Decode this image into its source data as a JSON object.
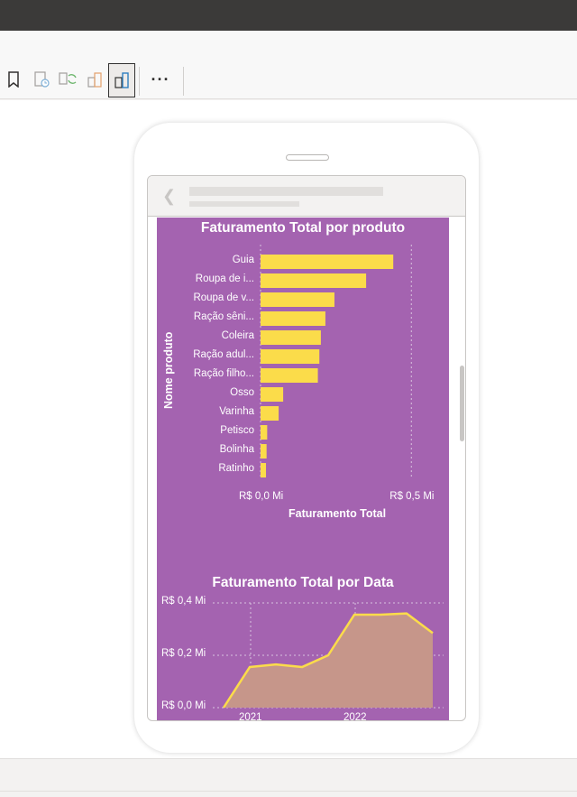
{
  "ribbon": {
    "buttons": [
      {
        "name": "bookmark-icon"
      },
      {
        "name": "performance-analyzer-icon"
      },
      {
        "name": "sync-slicers-icon"
      },
      {
        "name": "desktop-layout-icon"
      },
      {
        "name": "mobile-layout-icon"
      },
      {
        "name": "more-options-icon",
        "label": "···"
      }
    ]
  },
  "colors": {
    "report_bg": "#a463b0",
    "bar_color": "#fbdc4a",
    "area_fill": "#c6968a",
    "line_color": "#fbdc4a"
  },
  "charts": {
    "bar_title": "Faturamento Total por produto",
    "bar_ylabel": "Nome produto",
    "bar_xlabel": "Faturamento Total",
    "line_title": "Faturamento Total por Data"
  },
  "chart_data": [
    {
      "type": "bar",
      "orientation": "horizontal",
      "title": "Faturamento Total por produto",
      "xlabel": "Faturamento Total",
      "ylabel": "Nome produto",
      "categories": [
        "Guia",
        "Roupa de i...",
        "Roupa de v...",
        "Ração sêni...",
        "Coleira",
        "Ração adul...",
        "Ração filho...",
        "Osso",
        "Varinha",
        "Petisco",
        "Bolinha",
        "Ratinho"
      ],
      "values": [
        0.44,
        0.35,
        0.245,
        0.215,
        0.2,
        0.195,
        0.19,
        0.075,
        0.06,
        0.022,
        0.02,
        0.018
      ],
      "xticks": [
        "R$ 0,0 Mi",
        "R$ 0,5 Mi"
      ],
      "xlim": [
        0,
        0.55
      ],
      "unit": "Mi"
    },
    {
      "type": "area",
      "title": "Faturamento Total por Data",
      "x": [
        "2020-10",
        "2021-01",
        "2021-04",
        "2021-07",
        "2021-10",
        "2022-01",
        "2022-04",
        "2022-07",
        "2022-10"
      ],
      "values": [
        0.0,
        0.155,
        0.165,
        0.155,
        0.2,
        0.355,
        0.355,
        0.36,
        0.285
      ],
      "yticks": [
        "R$ 0,4 Mi",
        "R$ 0,2 Mi",
        "R$ 0,0 Mi"
      ],
      "xticks": [
        "2021",
        "2022"
      ],
      "ylim": [
        0,
        0.4
      ],
      "grid": true
    }
  ]
}
